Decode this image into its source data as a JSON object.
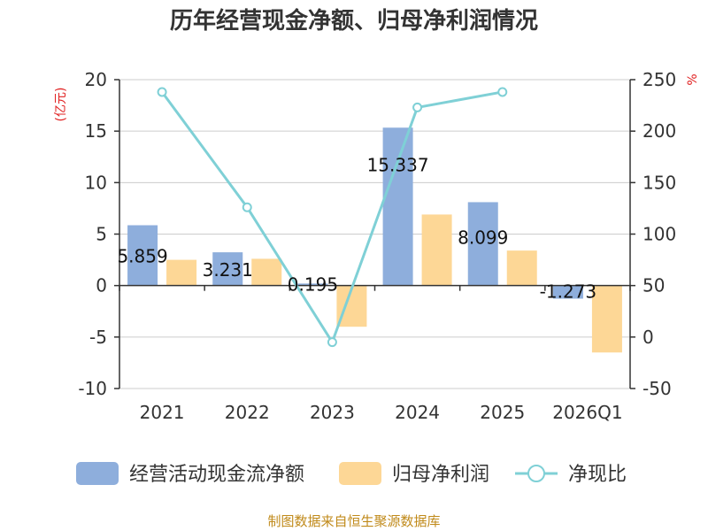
{
  "chart_data": {
    "type": "bar",
    "title": "历年经营现金净额、归母净利润情况",
    "categories": [
      "2021",
      "2022",
      "2023",
      "2024",
      "2025",
      "2026Q1"
    ],
    "left_axis": {
      "unit": "(亿元)",
      "ylim": [
        -10,
        20
      ],
      "ticks": [
        "20",
        "15",
        "10",
        "5",
        "0",
        "-5",
        "-10"
      ],
      "tick_values": [
        20,
        15,
        10,
        5,
        0,
        -5,
        -10
      ]
    },
    "right_axis": {
      "unit": "%",
      "ylim": [
        -50,
        250
      ],
      "ticks": [
        "250",
        "200",
        "150",
        "100",
        "50",
        "0",
        "-50"
      ],
      "tick_values": [
        250,
        200,
        150,
        100,
        50,
        0,
        -50
      ]
    },
    "series": [
      {
        "name": "经营活动现金流净额",
        "kind": "bar",
        "axis": "left",
        "color": "#8eaedc",
        "values": [
          5.859,
          3.231,
          0.195,
          15.337,
          8.099,
          -1.273
        ],
        "labels": [
          "5.859",
          "3.231",
          "0.195",
          "15.337",
          "8.099",
          "-1.273"
        ]
      },
      {
        "name": "归母净利润",
        "kind": "bar",
        "axis": "left",
        "color": "#fdd796",
        "values": [
          2.5,
          2.6,
          -4.0,
          6.9,
          3.4,
          -6.5
        ]
      },
      {
        "name": "净现比",
        "kind": "line",
        "axis": "right",
        "color": "#7fd0d6",
        "values": [
          238,
          126,
          -5,
          223,
          238,
          null
        ]
      }
    ],
    "grid": true,
    "legend": "bottom"
  },
  "source_note": "制图数据来自恒生聚源数据库"
}
